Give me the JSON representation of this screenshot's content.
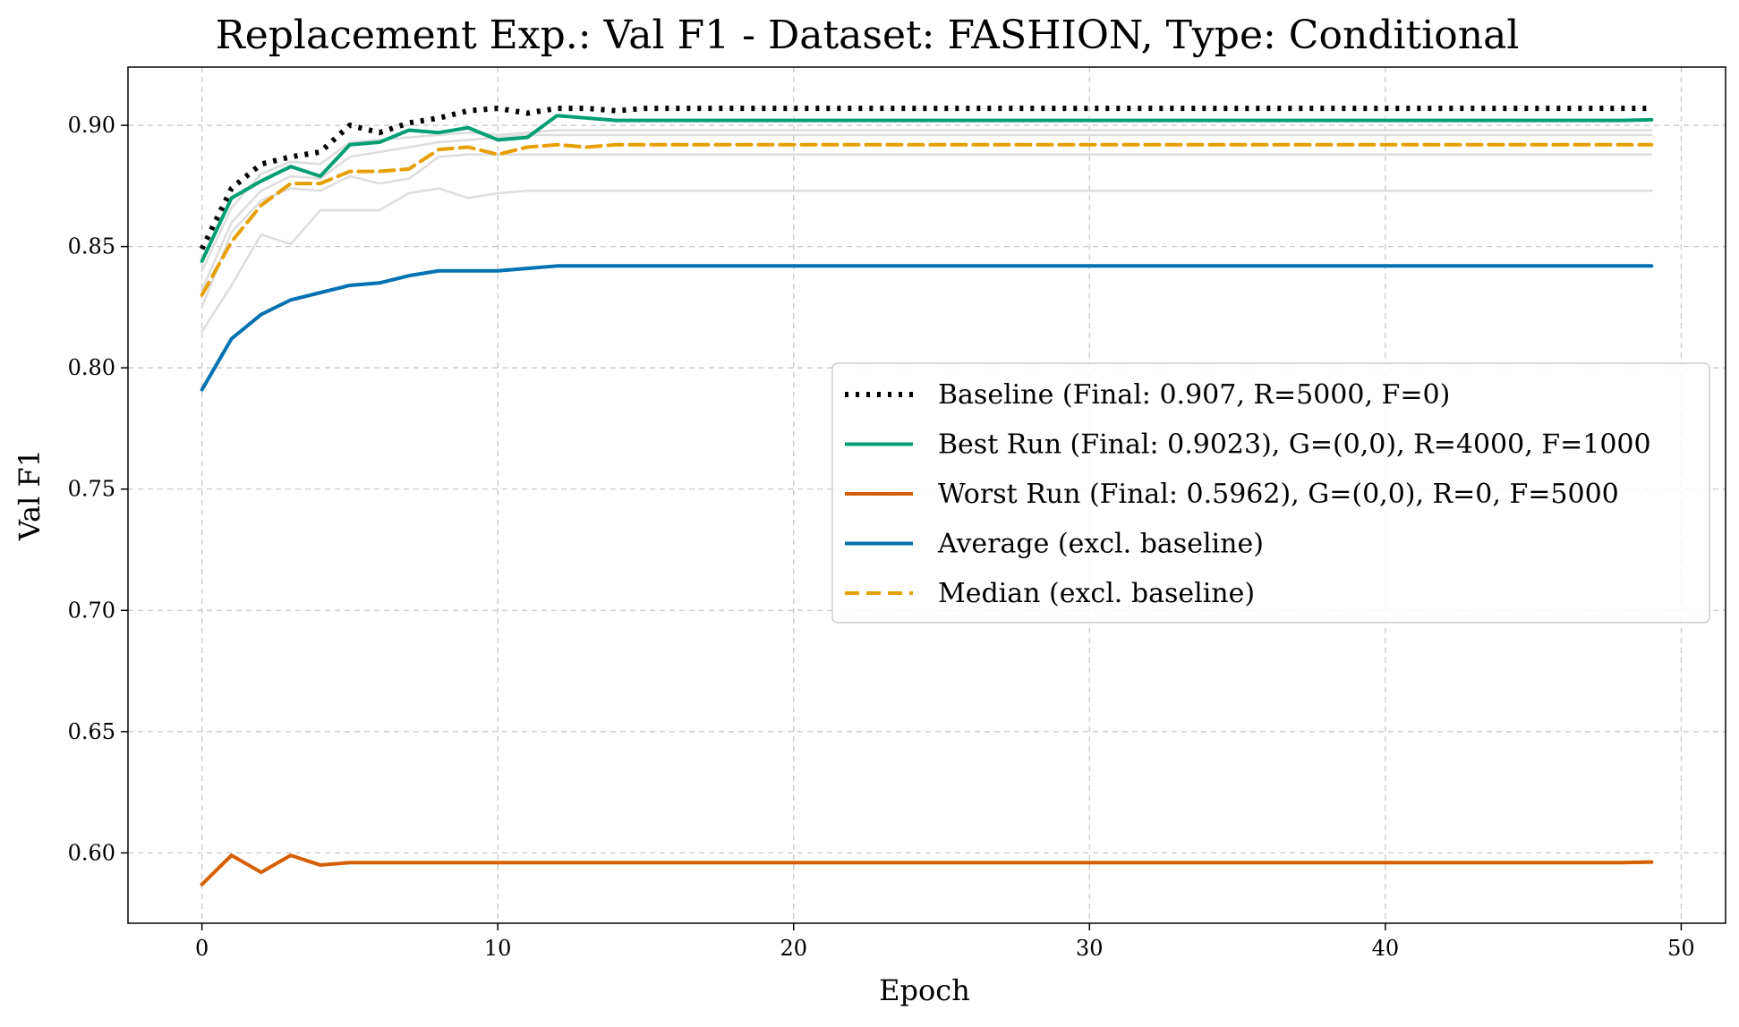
{
  "chart_data": {
    "type": "line",
    "title": "Replacement Exp.: Val F1 - Dataset: FASHION, Type: Conditional",
    "xlabel": "Epoch",
    "ylabel": "Val F1",
    "xlim": [
      -2.5,
      51.5
    ],
    "ylim": [
      0.571,
      0.924
    ],
    "xticks": [
      0,
      10,
      20,
      30,
      40,
      50
    ],
    "yticks": [
      0.6,
      0.65,
      0.7,
      0.75,
      0.8,
      0.85,
      0.9
    ],
    "xtick_labels": [
      "0",
      "10",
      "20",
      "30",
      "40",
      "50"
    ],
    "ytick_labels": [
      "0.60",
      "0.65",
      "0.70",
      "0.75",
      "0.80",
      "0.85",
      "0.90"
    ],
    "grid": true,
    "legend_position": "center-right",
    "series": [
      {
        "name": "Baseline (Final: 0.907, R=5000, F=0)",
        "color": "#000000",
        "style": "dotted",
        "in_legend": true,
        "values": [
          0.849,
          0.874,
          0.884,
          0.887,
          0.889,
          0.9,
          0.897,
          0.901,
          0.903,
          0.906,
          0.907,
          0.905,
          0.907,
          0.907,
          0.906,
          0.907,
          0.907,
          0.907,
          0.907,
          0.907,
          0.907,
          0.907,
          0.907,
          0.907,
          0.907,
          0.907,
          0.907,
          0.907,
          0.907,
          0.907,
          0.907,
          0.907,
          0.907,
          0.907,
          0.907,
          0.907,
          0.907,
          0.907,
          0.907,
          0.907,
          0.907,
          0.907,
          0.907,
          0.907,
          0.907,
          0.907,
          0.907,
          0.907,
          0.907,
          0.907
        ]
      },
      {
        "name": "Best Run (Final: 0.9023), G=(0,0), R=4000, F=1000",
        "color": "#009E73",
        "style": "solid",
        "in_legend": true,
        "values": [
          0.844,
          0.87,
          0.877,
          0.883,
          0.879,
          0.892,
          0.893,
          0.898,
          0.897,
          0.899,
          0.894,
          0.895,
          0.904,
          0.903,
          0.902,
          0.902,
          0.902,
          0.902,
          0.902,
          0.902,
          0.902,
          0.902,
          0.902,
          0.902,
          0.902,
          0.902,
          0.902,
          0.902,
          0.902,
          0.902,
          0.902,
          0.902,
          0.902,
          0.902,
          0.902,
          0.902,
          0.902,
          0.902,
          0.902,
          0.902,
          0.902,
          0.902,
          0.902,
          0.902,
          0.902,
          0.902,
          0.902,
          0.902,
          0.902,
          0.9023
        ]
      },
      {
        "name": "Worst Run (Final: 0.5962), G=(0,0), R=0, F=5000",
        "color": "#D55E00",
        "style": "solid",
        "in_legend": true,
        "values": [
          0.587,
          0.599,
          0.592,
          0.599,
          0.595,
          0.596,
          0.596,
          0.596,
          0.596,
          0.596,
          0.596,
          0.596,
          0.596,
          0.596,
          0.596,
          0.596,
          0.596,
          0.596,
          0.596,
          0.596,
          0.596,
          0.596,
          0.596,
          0.596,
          0.596,
          0.596,
          0.596,
          0.596,
          0.596,
          0.596,
          0.596,
          0.596,
          0.596,
          0.596,
          0.596,
          0.596,
          0.596,
          0.596,
          0.596,
          0.596,
          0.596,
          0.596,
          0.596,
          0.596,
          0.596,
          0.596,
          0.596,
          0.596,
          0.596,
          0.5962
        ]
      },
      {
        "name": "Average (excl. baseline)",
        "color": "#0072B2",
        "style": "solid",
        "in_legend": true,
        "values": [
          0.791,
          0.812,
          0.822,
          0.828,
          0.831,
          0.834,
          0.835,
          0.838,
          0.84,
          0.84,
          0.84,
          0.841,
          0.842,
          0.842,
          0.842,
          0.842,
          0.842,
          0.842,
          0.842,
          0.842,
          0.842,
          0.842,
          0.842,
          0.842,
          0.842,
          0.842,
          0.842,
          0.842,
          0.842,
          0.842,
          0.842,
          0.842,
          0.842,
          0.842,
          0.842,
          0.842,
          0.842,
          0.842,
          0.842,
          0.842,
          0.842,
          0.842,
          0.842,
          0.842,
          0.842,
          0.842,
          0.842,
          0.842,
          0.842,
          0.842
        ]
      },
      {
        "name": "Median (excl. baseline)",
        "color": "#E69F00",
        "style": "dashed",
        "in_legend": true,
        "values": [
          0.83,
          0.852,
          0.867,
          0.876,
          0.876,
          0.881,
          0.881,
          0.882,
          0.89,
          0.891,
          0.888,
          0.891,
          0.892,
          0.891,
          0.892,
          0.892,
          0.892,
          0.892,
          0.892,
          0.892,
          0.892,
          0.892,
          0.892,
          0.892,
          0.892,
          0.892,
          0.892,
          0.892,
          0.892,
          0.892,
          0.892,
          0.892,
          0.892,
          0.892,
          0.892,
          0.892,
          0.892,
          0.892,
          0.892,
          0.892,
          0.892,
          0.892,
          0.892,
          0.892,
          0.892,
          0.892,
          0.892,
          0.892,
          0.892,
          0.892
        ]
      },
      {
        "color": "#dddddd",
        "style": "solid",
        "in_legend": false,
        "values": [
          0.84,
          0.866,
          0.88,
          0.885,
          0.884,
          0.893,
          0.894,
          0.895,
          0.896,
          0.897,
          0.896,
          0.897,
          0.898,
          0.898,
          0.898,
          0.898,
          0.898,
          0.898,
          0.898,
          0.898,
          0.898,
          0.898,
          0.898,
          0.898,
          0.898,
          0.898,
          0.898,
          0.898,
          0.898,
          0.898,
          0.898,
          0.898,
          0.898,
          0.898,
          0.898,
          0.898,
          0.898,
          0.898,
          0.898,
          0.898,
          0.898,
          0.898,
          0.898,
          0.898,
          0.898,
          0.898,
          0.898,
          0.898,
          0.898,
          0.898
        ]
      },
      {
        "color": "#dddddd",
        "style": "solid",
        "in_legend": false,
        "values": [
          0.832,
          0.86,
          0.873,
          0.879,
          0.878,
          0.887,
          0.889,
          0.891,
          0.893,
          0.894,
          0.895,
          0.896,
          0.896,
          0.896,
          0.896,
          0.896,
          0.896,
          0.896,
          0.896,
          0.896,
          0.896,
          0.896,
          0.896,
          0.896,
          0.896,
          0.896,
          0.896,
          0.896,
          0.896,
          0.896,
          0.896,
          0.896,
          0.896,
          0.896,
          0.896,
          0.896,
          0.896,
          0.896,
          0.896,
          0.896,
          0.896,
          0.896,
          0.896,
          0.896,
          0.896,
          0.896,
          0.896,
          0.896,
          0.896,
          0.896
        ]
      },
      {
        "color": "#dddddd",
        "style": "solid",
        "in_legend": false,
        "values": [
          0.825,
          0.856,
          0.869,
          0.874,
          0.873,
          0.879,
          0.876,
          0.878,
          0.887,
          0.888,
          0.888,
          0.888,
          0.888,
          0.888,
          0.888,
          0.888,
          0.888,
          0.888,
          0.888,
          0.888,
          0.888,
          0.888,
          0.888,
          0.888,
          0.888,
          0.888,
          0.888,
          0.888,
          0.888,
          0.888,
          0.888,
          0.888,
          0.888,
          0.888,
          0.888,
          0.888,
          0.888,
          0.888,
          0.888,
          0.888,
          0.888,
          0.888,
          0.888,
          0.888,
          0.888,
          0.888,
          0.888,
          0.888,
          0.888,
          0.888
        ]
      },
      {
        "color": "#dddddd",
        "style": "solid",
        "in_legend": false,
        "values": [
          0.815,
          0.834,
          0.855,
          0.851,
          0.865,
          0.865,
          0.865,
          0.872,
          0.874,
          0.87,
          0.872,
          0.873,
          0.873,
          0.873,
          0.873,
          0.873,
          0.873,
          0.873,
          0.873,
          0.873,
          0.873,
          0.873,
          0.873,
          0.873,
          0.873,
          0.873,
          0.873,
          0.873,
          0.873,
          0.873,
          0.873,
          0.873,
          0.873,
          0.873,
          0.873,
          0.873,
          0.873,
          0.873,
          0.873,
          0.873,
          0.873,
          0.873,
          0.873,
          0.873,
          0.873,
          0.873,
          0.873,
          0.873,
          0.873,
          0.873
        ]
      }
    ]
  }
}
